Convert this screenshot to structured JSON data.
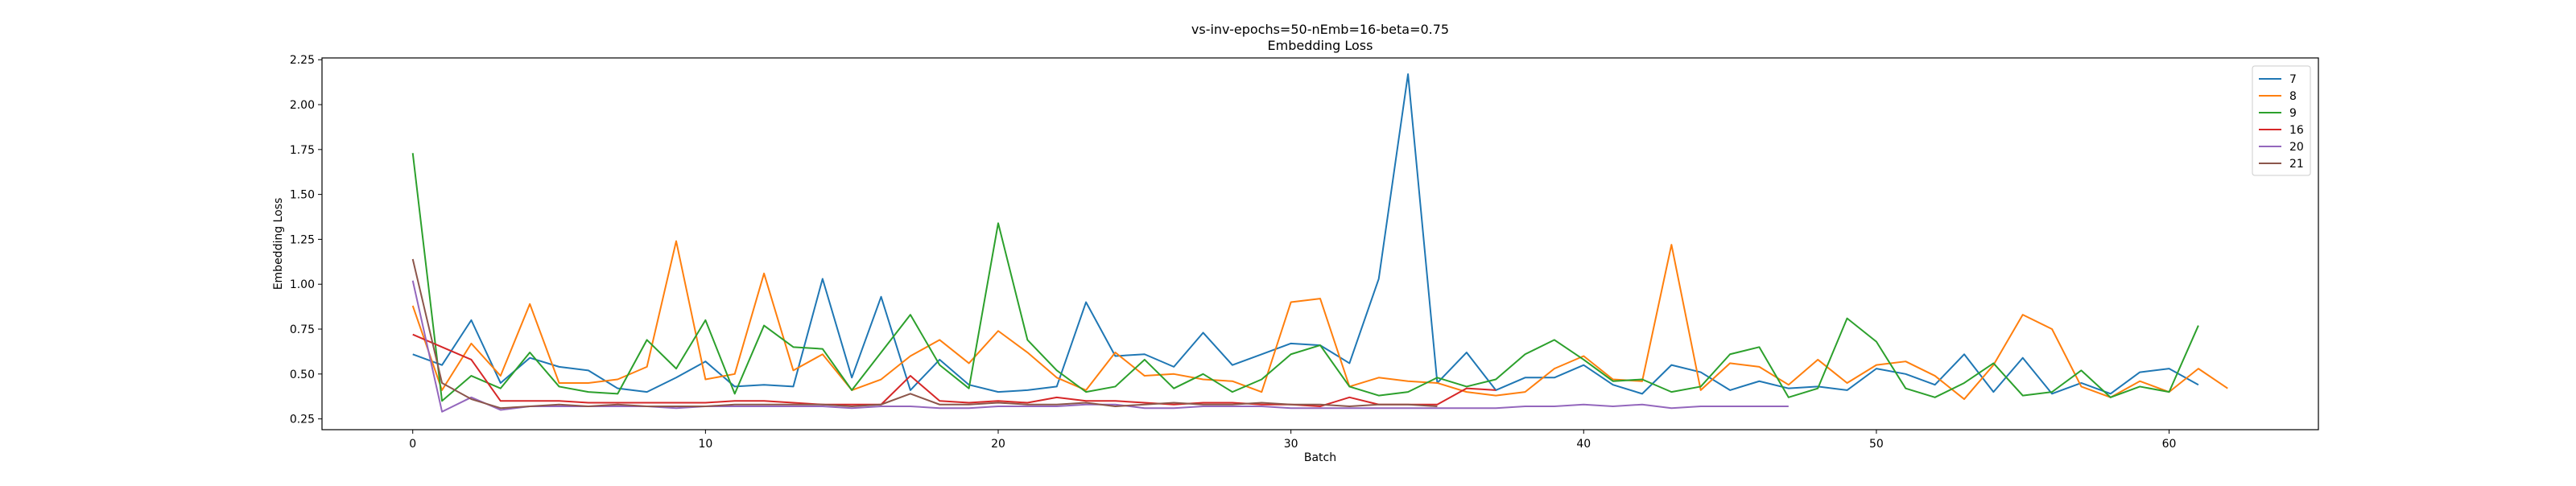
{
  "chart_data": {
    "type": "line",
    "title": "vs-inv-epochs=50-nEmb=16-beta=0.75",
    "subtitle": "Embedding Loss",
    "xlabel": "Batch",
    "ylabel": "Embedding Loss",
    "xlim": [
      -3.1,
      65.1
    ],
    "ylim": [
      0.19,
      2.26
    ],
    "xticks": [
      0,
      10,
      20,
      30,
      40,
      50,
      60
    ],
    "yticks": [
      0.25,
      0.5,
      0.75,
      1.0,
      1.25,
      1.5,
      1.75,
      2.0,
      2.25
    ],
    "ytick_labels": [
      "0.25",
      "0.50",
      "0.75",
      "1.00",
      "1.25",
      "1.50",
      "1.75",
      "2.00",
      "2.25"
    ],
    "grid": false,
    "legend_position": "top-right",
    "series": [
      {
        "name": "7",
        "color": "#1f77b4",
        "values": [
          0.61,
          0.55,
          0.8,
          0.45,
          0.59,
          0.54,
          0.52,
          0.42,
          0.4,
          0.48,
          0.57,
          0.43,
          0.44,
          0.43,
          1.03,
          0.48,
          0.93,
          0.41,
          0.58,
          0.44,
          0.4,
          0.41,
          0.43,
          0.9,
          0.6,
          0.61,
          0.54,
          0.73,
          0.55,
          0.61,
          0.67,
          0.66,
          0.56,
          1.03,
          2.17,
          0.45,
          0.62,
          0.41,
          0.48,
          0.48,
          0.55,
          0.44,
          0.39,
          0.55,
          0.51,
          0.41,
          0.46,
          0.42,
          0.43,
          0.41,
          0.53,
          0.5,
          0.44,
          0.61,
          0.4,
          0.59,
          0.39,
          0.45,
          0.39,
          0.51,
          0.53,
          0.44
        ]
      },
      {
        "name": "8",
        "color": "#ff7f0e",
        "values": [
          0.88,
          0.41,
          0.67,
          0.49,
          0.89,
          0.45,
          0.45,
          0.47,
          0.54,
          1.24,
          0.47,
          0.5,
          1.06,
          0.52,
          0.61,
          0.41,
          0.47,
          0.6,
          0.69,
          0.56,
          0.74,
          0.62,
          0.48,
          0.41,
          0.62,
          0.49,
          0.5,
          0.47,
          0.46,
          0.4,
          0.9,
          0.92,
          0.43,
          0.48,
          0.46,
          0.45,
          0.4,
          0.38,
          0.4,
          0.53,
          0.6,
          0.47,
          0.46,
          1.22,
          0.41,
          0.56,
          0.54,
          0.44,
          0.58,
          0.45,
          0.55,
          0.57,
          0.49,
          0.36,
          0.55,
          0.83,
          0.75,
          0.43,
          0.37,
          0.46,
          0.4,
          0.53,
          0.42
        ]
      },
      {
        "name": "9",
        "color": "#2ca02c",
        "values": [
          1.73,
          0.35,
          0.49,
          0.42,
          0.62,
          0.43,
          0.4,
          0.39,
          0.69,
          0.53,
          0.8,
          0.39,
          0.77,
          0.65,
          0.64,
          0.41,
          0.62,
          0.83,
          0.55,
          0.42,
          1.34,
          0.69,
          0.52,
          0.4,
          0.43,
          0.58,
          0.42,
          0.5,
          0.4,
          0.47,
          0.61,
          0.66,
          0.43,
          0.38,
          0.4,
          0.48,
          0.43,
          0.47,
          0.61,
          0.69,
          0.58,
          0.46,
          0.47,
          0.4,
          0.43,
          0.61,
          0.65,
          0.37,
          0.42,
          0.81,
          0.68,
          0.42,
          0.37,
          0.45,
          0.56,
          0.38,
          0.4,
          0.52,
          0.37,
          0.43,
          0.4,
          0.77
        ]
      },
      {
        "name": "16",
        "color": "#d62728",
        "values": [
          0.72,
          0.65,
          0.58,
          0.35,
          0.35,
          0.35,
          0.34,
          0.34,
          0.34,
          0.34,
          0.34,
          0.35,
          0.35,
          0.34,
          0.33,
          0.33,
          0.33,
          0.49,
          0.35,
          0.34,
          0.35,
          0.34,
          0.37,
          0.35,
          0.35,
          0.34,
          0.33,
          0.34,
          0.34,
          0.33,
          0.33,
          0.32,
          0.37,
          0.33,
          0.33,
          0.33,
          0.42,
          0.41
        ]
      },
      {
        "name": "20",
        "color": "#9467bd",
        "values": [
          1.02,
          0.29,
          0.37,
          0.3,
          0.32,
          0.32,
          0.32,
          0.32,
          0.32,
          0.31,
          0.32,
          0.32,
          0.32,
          0.32,
          0.32,
          0.31,
          0.32,
          0.32,
          0.31,
          0.31,
          0.32,
          0.32,
          0.32,
          0.33,
          0.33,
          0.31,
          0.31,
          0.32,
          0.32,
          0.32,
          0.31,
          0.31,
          0.31,
          0.31,
          0.31,
          0.31,
          0.31,
          0.31,
          0.32,
          0.32,
          0.33,
          0.32,
          0.33,
          0.31,
          0.32,
          0.32,
          0.32,
          0.32
        ]
      },
      {
        "name": "21",
        "color": "#8c564b",
        "values": [
          1.14,
          0.45,
          0.36,
          0.31,
          0.32,
          0.33,
          0.32,
          0.33,
          0.32,
          0.32,
          0.32,
          0.33,
          0.33,
          0.33,
          0.33,
          0.32,
          0.33,
          0.39,
          0.33,
          0.33,
          0.34,
          0.33,
          0.33,
          0.34,
          0.32,
          0.33,
          0.34,
          0.33,
          0.33,
          0.34,
          0.33,
          0.33,
          0.32,
          0.33,
          0.33,
          0.32
        ]
      }
    ]
  }
}
